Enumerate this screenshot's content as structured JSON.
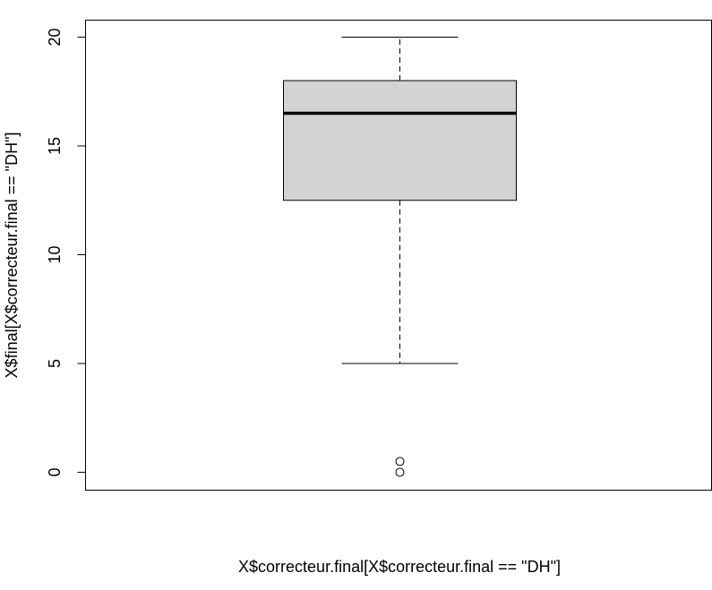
{
  "chart_data": {
    "type": "boxplot",
    "title": "",
    "xlabel": "X$correcteur.final[X$correcteur.final == \"DH\"]",
    "ylabel": "X$final[X$correcteur.final == \"DH\"]",
    "ylim": [
      -0.8,
      20.8
    ],
    "yticks": [
      "0",
      "5",
      "10",
      "15",
      "20"
    ],
    "box": {
      "whisker_low": 5,
      "q1": 12.5,
      "median": 16.5,
      "q3": 18,
      "whisker_high": 20
    },
    "outliers": [
      0,
      0.5
    ],
    "colors": {
      "box_fill": "#d3d3d3",
      "line": "#000000"
    }
  }
}
